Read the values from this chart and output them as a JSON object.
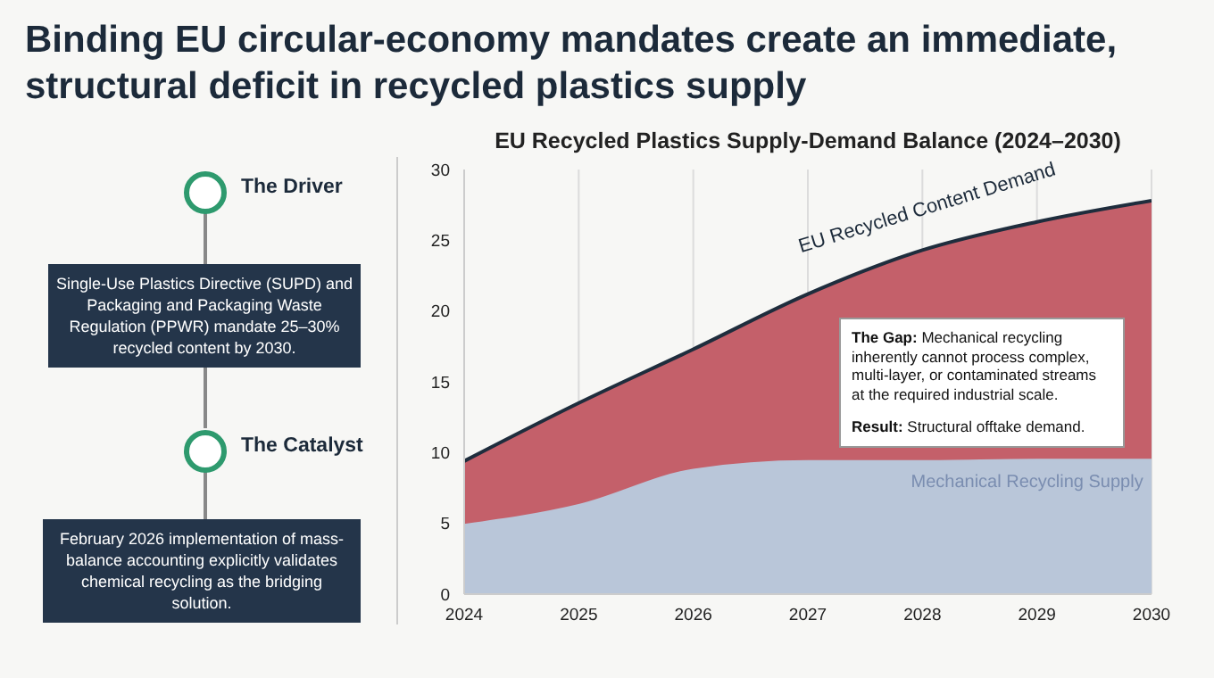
{
  "chart_data": {
    "type": "area",
    "title": "Binding EU circular-economy mandates create an immediate, structural deficit in recycled plastics supply",
    "subtitle": "EU Recycled Plastics Supply-Demand Balance (2024–2030)",
    "x": [
      2024,
      2025,
      2026,
      2027,
      2028,
      2029,
      2030
    ],
    "series": [
      {
        "name": "EU Recycled Content Demand",
        "color": "#c4606a",
        "values": [
          9.4,
          13.5,
          17.3,
          21.2,
          24.3,
          26.3,
          27.8
        ]
      },
      {
        "name": "Mechanical Recycling Supply",
        "color": "#b9c6d9",
        "values": [
          4.9,
          6.3,
          8.8,
          9.4,
          9.4,
          9.5,
          9.5
        ]
      }
    ],
    "xlim": [
      2024,
      2030
    ],
    "xticks": [
      2024,
      2025,
      2026,
      2027,
      2028,
      2029,
      2030
    ],
    "ylim": [
      0,
      30
    ],
    "yticks": [
      0,
      5,
      10,
      15,
      20,
      25,
      30
    ],
    "grid": "x",
    "annotations": [
      "The Driver",
      "Single-Use Plastics Directive (SUPD) and Packaging and Packaging Waste Regulation (PPWR) mandate 25–30% recycled content by 2030.",
      "The Catalyst",
      "February 2026 implementation of mass-balance accounting explicitly validates chemical recycling as the bridging solution.",
      "The Gap: Mechanical recycling inherently cannot process complex, multi-layer, or contaminated streams at the required industrial scale.",
      "Result: Structural offtake demand."
    ]
  }
}
